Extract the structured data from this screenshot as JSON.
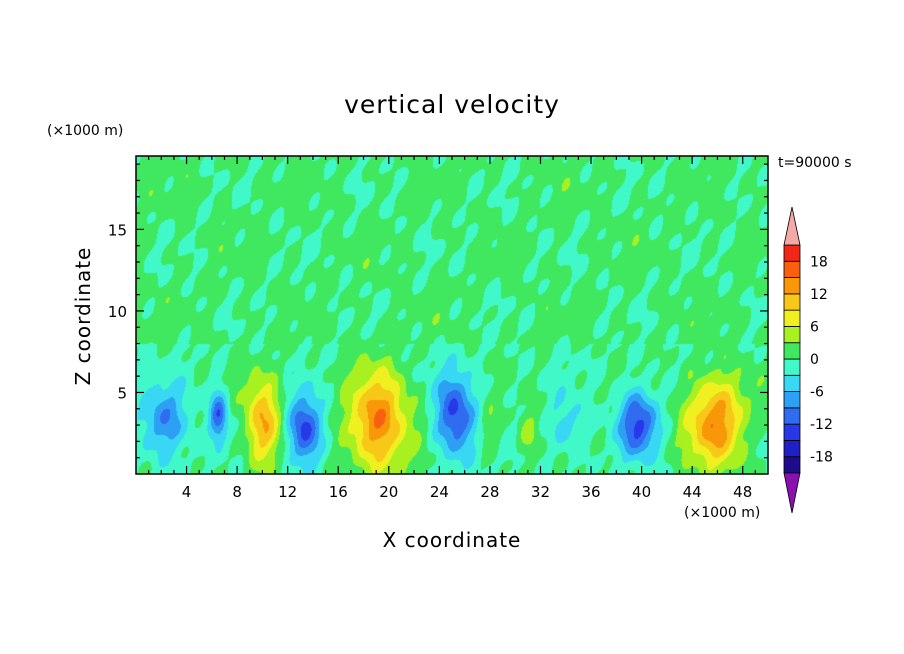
{
  "chart_data": {
    "type": "heatmap",
    "title": "vertical velocity",
    "xlabel": "X coordinate",
    "ylabel": "Z coordinate",
    "x_unit": "(×1000 m)",
    "y_unit": "(×1000 m)",
    "time_label": "t=90000 s",
    "xlim": [
      0,
      50
    ],
    "ylim": [
      0,
      19.5
    ],
    "x_ticks": [
      4,
      8,
      12,
      16,
      20,
      24,
      28,
      32,
      36,
      40,
      44,
      48
    ],
    "y_ticks": [
      5,
      10,
      15
    ],
    "colorbar": {
      "levels": [
        -21,
        -18,
        -15,
        -12,
        -9,
        -6,
        -3,
        0,
        3,
        6,
        9,
        12,
        15,
        18,
        21
      ],
      "labels": [
        18,
        12,
        6,
        0,
        -6,
        -12,
        -18
      ],
      "colors": [
        "#1f0c8c",
        "#2020c8",
        "#2638e8",
        "#2f6cf0",
        "#2ea0f4",
        "#38d8f4",
        "#40f8c8",
        "#40e860",
        "#a8f020",
        "#f0f020",
        "#f8c818",
        "#f89808",
        "#f86010",
        "#f02818"
      ],
      "under_color": "#8a10b0",
      "over_color": "#f4a8a8"
    },
    "cells": [
      {
        "x": 2.2,
        "z": 3.2,
        "sx": 1.8,
        "sz": 2.2,
        "amp": -9
      },
      {
        "x": 6.5,
        "z": 3.6,
        "sx": 0.7,
        "sz": 1.6,
        "amp": -11
      },
      {
        "x": 10.0,
        "z": 3.2,
        "sx": 1.4,
        "sz": 2.6,
        "amp": 12
      },
      {
        "x": 13.3,
        "z": 2.7,
        "sx": 1.3,
        "sz": 2.1,
        "amp": -14
      },
      {
        "x": 19.1,
        "z": 3.2,
        "sx": 2.3,
        "sz": 3.0,
        "amp": 15
      },
      {
        "x": 25.2,
        "z": 3.6,
        "sx": 1.5,
        "sz": 2.5,
        "amp": -13
      },
      {
        "x": 28.0,
        "z": 2.8,
        "sx": 0.8,
        "sz": 1.4,
        "amp": 4
      },
      {
        "x": 31.0,
        "z": 2.6,
        "sx": 0.8,
        "sz": 1.4,
        "amp": 4
      },
      {
        "x": 34.0,
        "z": 3.0,
        "sx": 1.4,
        "sz": 1.8,
        "amp": -5
      },
      {
        "x": 39.7,
        "z": 3.1,
        "sx": 1.5,
        "sz": 2.0,
        "amp": -13
      },
      {
        "x": 45.8,
        "z": 3.2,
        "sx": 2.3,
        "sz": 2.8,
        "amp": 14
      }
    ]
  }
}
